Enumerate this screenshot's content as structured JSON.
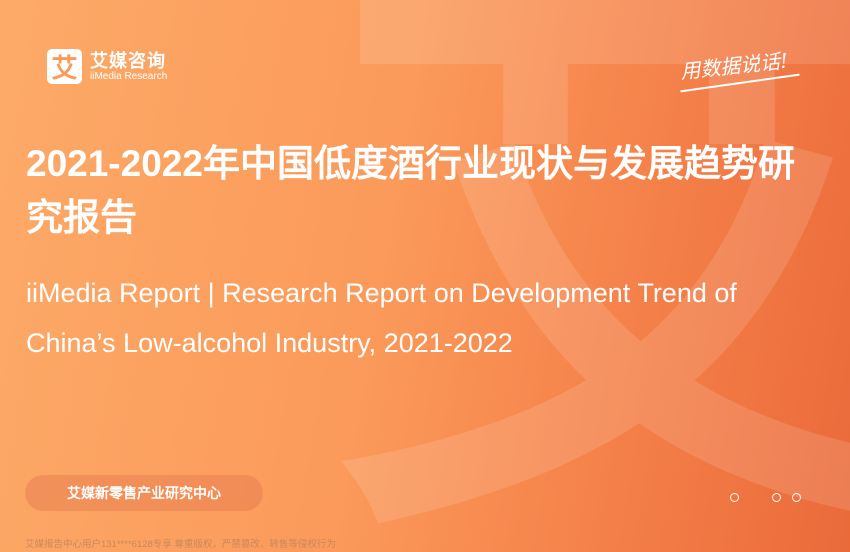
{
  "logo": {
    "mark": "艾",
    "name_cn": "艾媒咨询",
    "name_en": "iiMedia Research"
  },
  "slogan": "用数据说话!",
  "title": "2021-2022年中国低度酒行业现状与发展趋势研究报告",
  "subtitle": "iiMedia Report | Research Report on Development Trend of China’s Low-alcohol Industry, 2021-2022",
  "department": "艾媒新零售产业研究中心",
  "copyright": "艾媒报告中心用户131****6128专享 尊重版权，严禁篡改、转售等侵权行为",
  "colors": {
    "bg_start": "#fdaa68",
    "bg_end": "#ea6a3a"
  }
}
